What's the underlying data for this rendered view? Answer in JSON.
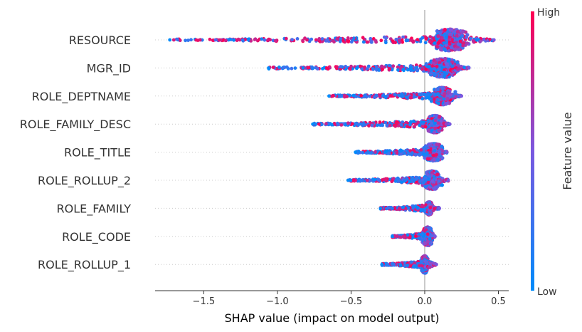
{
  "chart_data": {
    "type": "scatter",
    "subtype": "shap_beeswarm",
    "xlabel": "SHAP value (impact on model output)",
    "xlim": [
      -1.83,
      0.57
    ],
    "xticks": [
      -1.5,
      -1.0,
      -0.5,
      0.0,
      0.5
    ],
    "xtick_labels": [
      "−1.5",
      "−1.0",
      "−0.5",
      "0.0",
      "0.5"
    ],
    "colorbar": {
      "label": "Feature value",
      "high_label": "High",
      "low_label": "Low",
      "low_color": "#008bfb",
      "high_color": "#ff0051"
    },
    "features": [
      {
        "name": "RESOURCE",
        "min": -1.73,
        "max": 0.47,
        "peak": 0.17,
        "spread": 0.11,
        "height": 15,
        "high_share": 0.55
      },
      {
        "name": "MGR_ID",
        "min": -1.06,
        "max": 0.3,
        "peak": 0.13,
        "spread": 0.09,
        "height": 13,
        "high_share": 0.45
      },
      {
        "name": "ROLE_DEPTNAME",
        "min": -0.65,
        "max": 0.25,
        "peak": 0.12,
        "spread": 0.06,
        "height": 12,
        "high_share": 0.45
      },
      {
        "name": "ROLE_FAMILY_DESC",
        "min": -0.76,
        "max": 0.17,
        "peak": 0.07,
        "spread": 0.05,
        "height": 12,
        "high_share": 0.5
      },
      {
        "name": "ROLE_TITLE",
        "min": -0.47,
        "max": 0.15,
        "peak": 0.06,
        "spread": 0.06,
        "height": 12,
        "high_share": 0.25
      },
      {
        "name": "ROLE_ROLLUP_2",
        "min": -0.52,
        "max": 0.16,
        "peak": 0.05,
        "spread": 0.05,
        "height": 13,
        "high_share": 0.3
      },
      {
        "name": "ROLE_FAMILY",
        "min": -0.3,
        "max": 0.1,
        "peak": 0.03,
        "spread": 0.02,
        "height": 9,
        "high_share": 0.55
      },
      {
        "name": "ROLE_CODE",
        "min": -0.22,
        "max": 0.07,
        "peak": 0.02,
        "spread": 0.03,
        "height": 13,
        "high_share": 0.45
      },
      {
        "name": "ROLE_ROLLUP_1",
        "min": -0.29,
        "max": 0.08,
        "peak": 0.0,
        "spread": 0.02,
        "height": 12,
        "high_share": 0.25
      }
    ]
  }
}
